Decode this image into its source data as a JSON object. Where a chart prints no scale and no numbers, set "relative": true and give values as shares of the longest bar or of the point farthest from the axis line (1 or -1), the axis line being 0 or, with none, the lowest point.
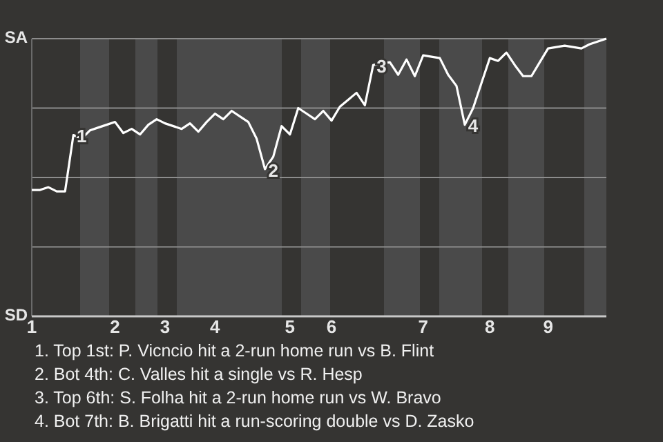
{
  "chart_data": {
    "type": "line",
    "marker": "none",
    "grid": "y",
    "line_style": "solid",
    "relative": true,
    "categories": [
      "1",
      null,
      null,
      null,
      null,
      null,
      null,
      null,
      null,
      null,
      "2",
      null,
      null,
      null,
      null,
      null,
      "3",
      null,
      null,
      null,
      null,
      null,
      "4",
      null,
      null,
      null,
      null,
      null,
      null,
      null,
      null,
      "5",
      null,
      null,
      null,
      null,
      "6",
      null,
      null,
      null,
      null,
      null,
      null,
      null,
      null,
      null,
      null,
      "7",
      null,
      null,
      null,
      null,
      null,
      null,
      null,
      "8",
      null,
      null,
      null,
      null,
      null,
      null,
      "9",
      null,
      null,
      null,
      null,
      null,
      null,
      null
    ],
    "series": [
      {
        "color": "#ffffff",
        "values": [
          0.455,
          0.455,
          0.465,
          0.45,
          0.45,
          0.653,
          0.64,
          0.67,
          0.68,
          0.69,
          0.7,
          0.66,
          0.675,
          0.655,
          0.69,
          0.71,
          0.695,
          0.685,
          0.675,
          0.695,
          0.665,
          0.7,
          0.73,
          0.71,
          0.74,
          0.72,
          0.7,
          0.64,
          0.53,
          0.575,
          0.685,
          0.655,
          0.75,
          0.73,
          0.71,
          0.74,
          0.705,
          0.755,
          0.78,
          0.805,
          0.76,
          0.905,
          0.91,
          0.915,
          0.87,
          0.925,
          0.865,
          0.94,
          0.935,
          0.93,
          0.87,
          0.83,
          0.69,
          0.75,
          0.84,
          0.93,
          0.92,
          0.95,
          0.905,
          0.865,
          0.865,
          0.915,
          0.965,
          0.97,
          0.975,
          0.97,
          0.965,
          0.98,
          0.99,
          1.0
        ]
      }
    ],
    "annotations": [
      "SA",
      "SD",
      {
        "text": "1",
        "y": 0.653
      },
      {
        "text": "2",
        "y": 0.53
      },
      {
        "text": "3",
        "y": 0.905
      },
      {
        "text": "4",
        "y": 0.69
      },
      "1. Top 1st: P. Vicncio hit a 2-run home run vs B. Flint",
      "2. Bot 4th: C. Valles hit a single vs R. Hesp",
      "3. Top 6th: S. Folha hit a 2-run home run vs W. Bravo",
      "4. Bot 7th: B. Brigatti hit a run-scoring double vs D. Zasko"
    ]
  }
}
